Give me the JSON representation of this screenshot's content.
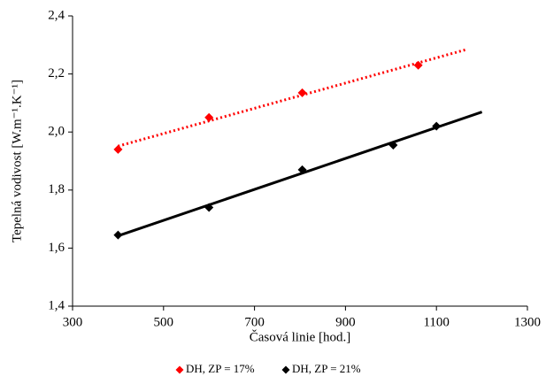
{
  "chart_data": {
    "type": "scatter",
    "x_label": "Časová linie [hod.]",
    "y_label": "Tepelná vodivost [W.m⁻¹.K⁻¹]",
    "xlim": [
      300,
      1300
    ],
    "xticks": [
      300,
      500,
      700,
      900,
      1100,
      1300
    ],
    "ylim": [
      1.4,
      2.4
    ],
    "yticks": [
      {
        "value": 1.4,
        "label": "1,4"
      },
      {
        "value": 1.6,
        "label": "1,6"
      },
      {
        "value": 1.8,
        "label": "1,8"
      },
      {
        "value": 2.0,
        "label": "2,0"
      },
      {
        "value": 2.2,
        "label": "2,2"
      },
      {
        "value": 2.4,
        "label": "2,4"
      }
    ],
    "legend": "bottom",
    "series": [
      {
        "name": "DH, ZP = 17%",
        "color": "#ff0000",
        "trend_style": "dotted",
        "trend_x": [
          400,
          1165
        ],
        "x": [
          400,
          600,
          805,
          1060
        ],
        "values": [
          1.94,
          2.05,
          2.135,
          2.23
        ]
      },
      {
        "name": "DH, ZP = 21%",
        "color": "#000000",
        "trend_style": "solid",
        "trend_x": [
          400,
          1200
        ],
        "x": [
          400,
          600,
          805,
          1005,
          1100
        ],
        "values": [
          1.645,
          1.74,
          1.87,
          1.955,
          2.02
        ]
      }
    ]
  }
}
